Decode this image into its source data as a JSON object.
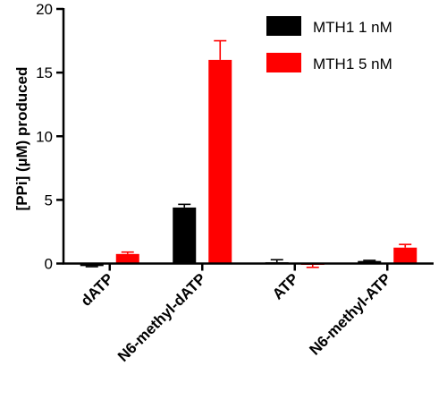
{
  "chart_data": {
    "type": "bar",
    "categories": [
      "dATP",
      "N6-methyl-dATP",
      "ATP",
      "N6-methyl-ATP"
    ],
    "series": [
      {
        "name": "MTH1 1 nM",
        "color": "#000000",
        "values": [
          -0.2,
          4.4,
          0.1,
          0.2
        ],
        "errors": [
          0.05,
          0.25,
          0.2,
          0.05
        ]
      },
      {
        "name": "MTH1 5 nM",
        "color": "#ff0000",
        "values": [
          0.75,
          16.0,
          -0.1,
          1.25
        ],
        "errors": [
          0.15,
          1.5,
          0.2,
          0.25
        ]
      }
    ],
    "title": "",
    "xlabel": "",
    "ylabel": "[PPi] (µM) produced",
    "ylim": [
      0,
      20
    ],
    "yticks": [
      0,
      5,
      10,
      15,
      20
    ],
    "legend_position": "top-right",
    "grid": false
  }
}
